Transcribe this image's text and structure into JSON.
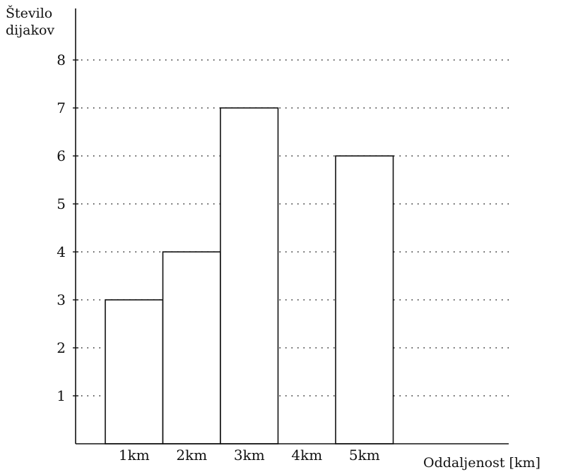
{
  "chart_data": {
    "type": "bar",
    "ylabel_lines": [
      "Število",
      "dijakov"
    ],
    "xlabel": "Oddaljenost [km]",
    "categories": [
      "1km",
      "2km",
      "3km",
      "4km",
      "5km"
    ],
    "values": [
      3,
      4,
      7,
      0,
      6
    ],
    "yticks": [
      1,
      2,
      3,
      4,
      5,
      6,
      7,
      8
    ],
    "ylim": [
      0,
      8
    ],
    "grid": true
  }
}
